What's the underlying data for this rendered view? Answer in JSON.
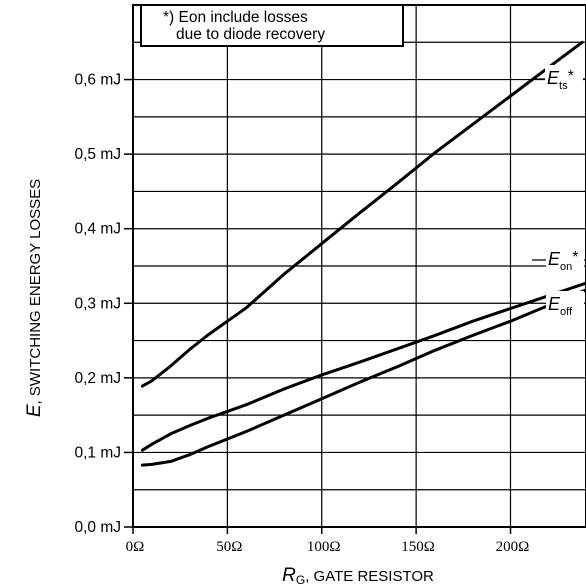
{
  "chart_data": {
    "type": "line",
    "grid": true,
    "xlim": [
      0,
      240
    ],
    "ylim": [
      0,
      0.7
    ],
    "x_ticks": [
      {
        "value": 0,
        "label": "0Ω"
      },
      {
        "value": 50,
        "label": "50Ω"
      },
      {
        "value": 100,
        "label": "100Ω"
      },
      {
        "value": 150,
        "label": "150Ω"
      },
      {
        "value": 200,
        "label": "200Ω"
      }
    ],
    "y_ticks": [
      {
        "value": 0.0,
        "label": "0,0 mJ"
      },
      {
        "value": 0.1,
        "label": "0,1 mJ"
      },
      {
        "value": 0.2,
        "label": "0,2 mJ"
      },
      {
        "value": 0.3,
        "label": "0,3 mJ"
      },
      {
        "value": 0.4,
        "label": "0,4 mJ"
      },
      {
        "value": 0.5,
        "label": "0,5 mJ"
      },
      {
        "value": 0.6,
        "label": "0,6 mJ"
      }
    ],
    "xlabel": {
      "symbol": "R",
      "subscript": "G",
      "text": ", GATE RESISTOR"
    },
    "ylabel": {
      "symbol": "E",
      "text": ", SWITCHING ENERGY LOSSES"
    },
    "note": [
      "*) Eon include losses",
      "due to diode recovery"
    ],
    "series": [
      {
        "name": "Ets*",
        "label": {
          "symbol": "E",
          "subscript": "ts",
          "suffix": "*"
        },
        "x": [
          5,
          10,
          20,
          30,
          40,
          50,
          60,
          80,
          100,
          120,
          140,
          160,
          180,
          200,
          220,
          238
        ],
        "values": [
          0.189,
          0.196,
          0.216,
          0.238,
          0.258,
          0.276,
          0.294,
          0.339,
          0.38,
          0.421,
          0.461,
          0.502,
          0.54,
          0.578,
          0.616,
          0.65
        ]
      },
      {
        "name": "Eon*",
        "label": {
          "symbol": "E",
          "subscript": "on",
          "suffix": "*"
        },
        "x": [
          5,
          10,
          20,
          30,
          40,
          50,
          60,
          80,
          100,
          120,
          140,
          160,
          180,
          200,
          220,
          240
        ],
        "values": [
          0.103,
          0.111,
          0.125,
          0.136,
          0.146,
          0.155,
          0.164,
          0.185,
          0.204,
          0.221,
          0.239,
          0.257,
          0.276,
          0.293,
          0.31,
          0.327
        ]
      },
      {
        "name": "Eoff",
        "label": {
          "symbol": "E",
          "subscript": "off",
          "suffix": ""
        },
        "x": [
          5,
          10,
          20,
          30,
          40,
          50,
          60,
          80,
          100,
          120,
          140,
          160,
          180,
          200,
          220,
          240
        ],
        "values": [
          0.083,
          0.084,
          0.088,
          0.097,
          0.108,
          0.118,
          0.128,
          0.15,
          0.172,
          0.194,
          0.215,
          0.237,
          0.257,
          0.276,
          0.297,
          0.318
        ]
      }
    ]
  }
}
